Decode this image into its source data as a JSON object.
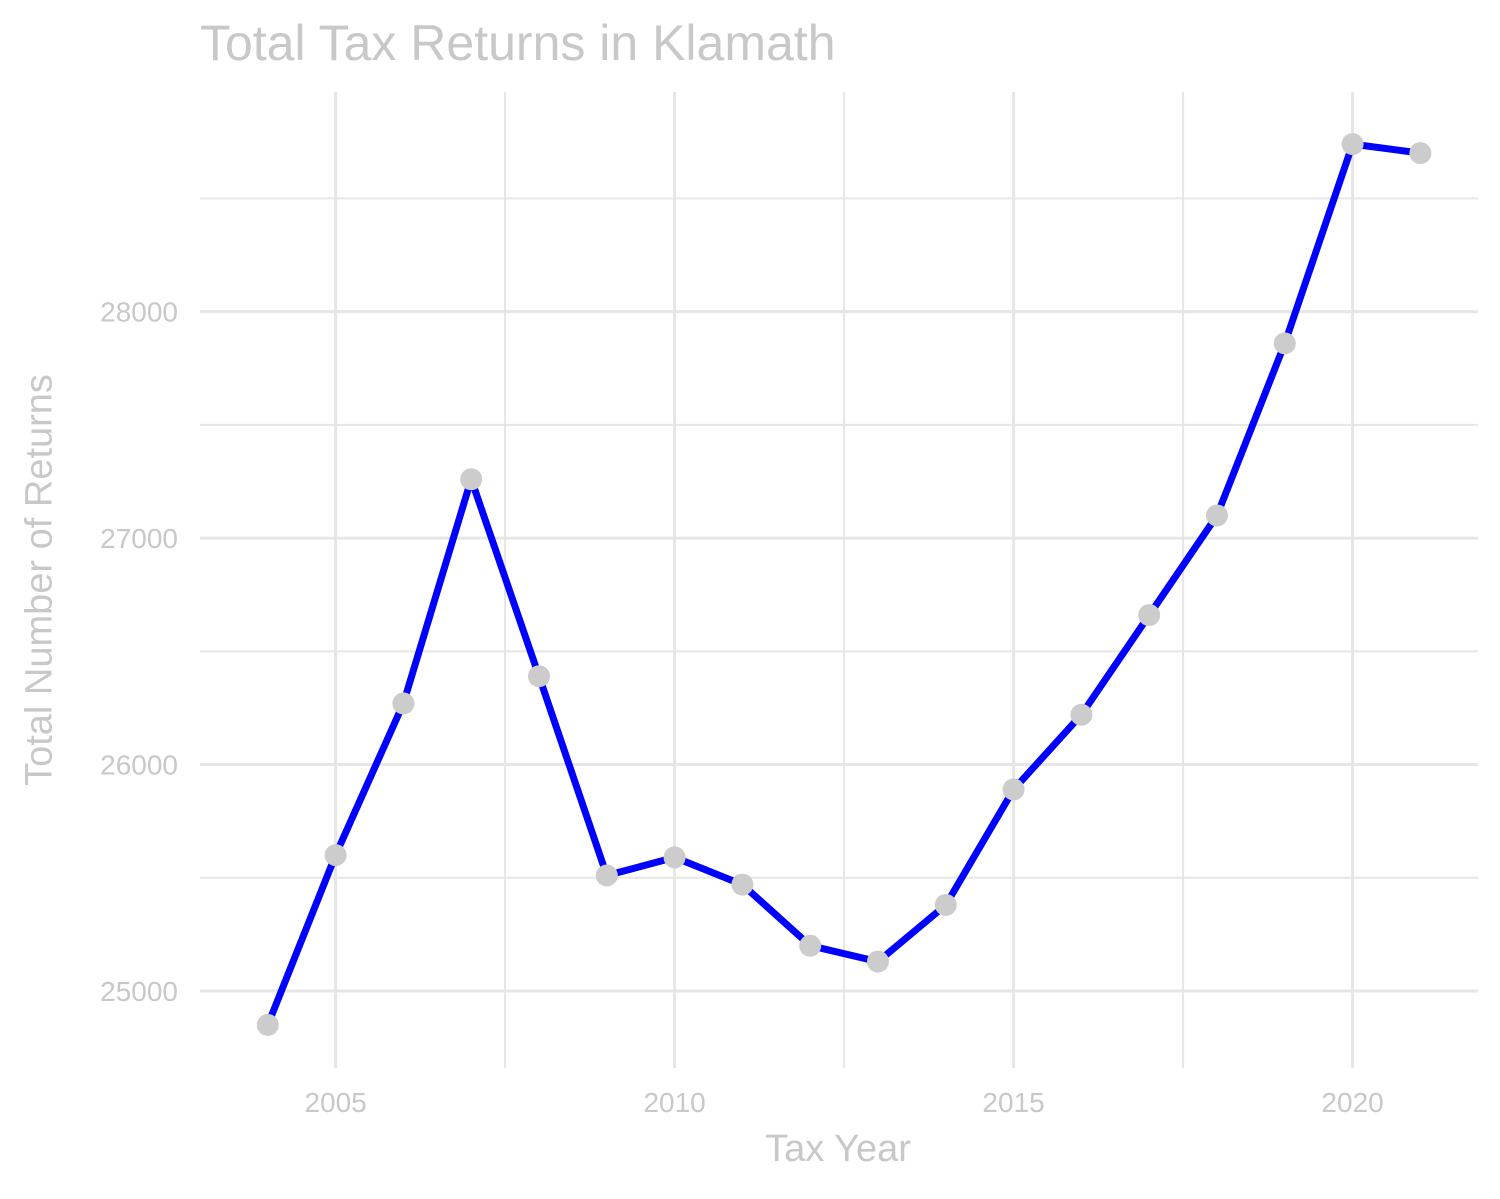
{
  "chart_data": {
    "type": "line",
    "title": "Total Tax Returns in Klamath",
    "xlabel": "Tax Year",
    "ylabel": "Total Number of Returns",
    "x": [
      2004,
      2005,
      2006,
      2007,
      2008,
      2009,
      2010,
      2011,
      2012,
      2013,
      2014,
      2015,
      2016,
      2017,
      2018,
      2019,
      2020,
      2021
    ],
    "series": [
      {
        "values": [
          24850,
          25600,
          26270,
          27260,
          26390,
          25510,
          25590,
          25470,
          25200,
          25130,
          25380,
          25890,
          26220,
          26660,
          27100,
          27860,
          28740,
          28700
        ]
      }
    ],
    "xlim": [
      2003.0,
      2021.85
    ],
    "ylim": [
      24660,
      28970
    ],
    "x_ticks": [
      2005,
      2010,
      2015,
      2020
    ],
    "x_minor_ticks": [
      2007.5,
      2012.5,
      2017.5
    ],
    "y_ticks": [
      25000,
      26000,
      27000,
      28000
    ],
    "y_minor_ticks": [
      25500,
      26500,
      27500,
      28500
    ],
    "grid": true,
    "legend": "none",
    "colors": {
      "line": "#0000ff",
      "points": "#cccccc",
      "grid": "#e6e6e6",
      "text": "#c8c8c8"
    }
  }
}
